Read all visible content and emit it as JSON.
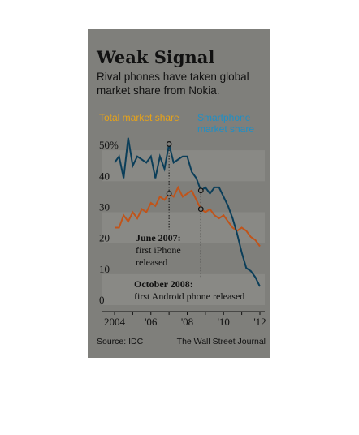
{
  "chart_data": {
    "type": "line",
    "title": "Weak Signal",
    "subtitle": [
      "Rival phones have taken global",
      "market share from Nokia."
    ],
    "ylim": [
      0,
      55
    ],
    "y_ticks": [
      "0",
      "10",
      "20",
      "30",
      "40",
      "50%"
    ],
    "y_tick_values": [
      0,
      10,
      20,
      30,
      40,
      50
    ],
    "x_ticks": [
      "2004",
      "'06",
      "'08",
      "'10",
      "'12"
    ],
    "x_tick_values": [
      2004,
      2006,
      2008,
      2010,
      2012
    ],
    "colors": {
      "total": "#c0541a",
      "smart": "#0b3e59",
      "smart_label": "#1f8fc5",
      "total_label": "#e8a317"
    },
    "series": [
      {
        "name": "Total market share",
        "x": [
          2004.0,
          2004.25,
          2004.5,
          2004.75,
          2005.0,
          2005.25,
          2005.5,
          2005.75,
          2006.0,
          2006.25,
          2006.5,
          2006.75,
          2007.0,
          2007.25,
          2007.5,
          2007.75,
          2008.0,
          2008.25,
          2008.5,
          2008.75,
          2009.0,
          2009.25,
          2009.5,
          2009.75,
          2010.0,
          2010.25,
          2010.5,
          2010.75,
          2011.0,
          2011.25,
          2011.5,
          2011.75,
          2012.0
        ],
        "y": [
          25,
          25,
          29,
          27,
          30,
          28,
          31,
          30,
          33,
          32,
          35,
          34,
          36,
          35,
          38,
          35,
          36,
          37,
          34,
          31,
          30,
          31,
          29,
          28,
          29,
          27,
          25,
          24,
          25,
          24,
          22,
          21,
          19
        ]
      },
      {
        "name": "Smartphone market share",
        "x": [
          2004.0,
          2004.25,
          2004.5,
          2004.75,
          2005.0,
          2005.25,
          2005.5,
          2005.75,
          2006.0,
          2006.25,
          2006.5,
          2006.75,
          2007.0,
          2007.25,
          2007.5,
          2007.75,
          2008.0,
          2008.25,
          2008.5,
          2008.75,
          2009.0,
          2009.25,
          2009.5,
          2009.75,
          2010.0,
          2010.25,
          2010.5,
          2010.75,
          2011.0,
          2011.25,
          2011.5,
          2011.75,
          2012.0
        ],
        "y": [
          46,
          48,
          41,
          54,
          45,
          48,
          47,
          46,
          48,
          41,
          48,
          44,
          52,
          46,
          47,
          48,
          48,
          43,
          41,
          37,
          38,
          36,
          38,
          38,
          35,
          32,
          28,
          23,
          17,
          12,
          11,
          9,
          6
        ]
      }
    ],
    "annotations": [
      {
        "bold": "June 2007:",
        "lines": [
          "first iPhone",
          "released"
        ],
        "x": 2007.0
      },
      {
        "bold": "October 2008:",
        "lines": [
          "first Android phone released"
        ],
        "x": 2008.75
      }
    ],
    "source": "Source: IDC",
    "credit": "The Wall Street Journal"
  }
}
